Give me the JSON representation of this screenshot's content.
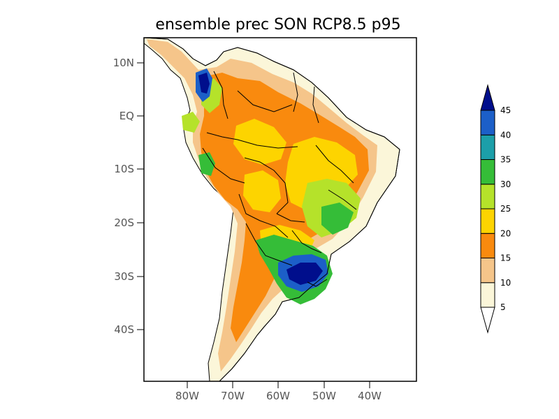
{
  "title": "ensemble prec SON RCP8.5 p95",
  "map": {
    "lon_labels": [
      "80W",
      "70W",
      "60W",
      "50W",
      "40W"
    ],
    "lat_labels": [
      "10N",
      "EQ",
      "10S",
      "20S",
      "30S",
      "40S"
    ],
    "lon_range": [
      -90,
      -30
    ],
    "lat_range": [
      -50,
      13
    ]
  },
  "colorbar": {
    "levels": [
      5,
      10,
      15,
      20,
      25,
      30,
      35,
      40,
      45
    ],
    "labels": [
      "5",
      "10",
      "15",
      "20",
      "25",
      "30",
      "35",
      "40",
      "45"
    ],
    "colors": [
      "#fbf6d9",
      "#f5c58a",
      "#f98a0e",
      "#fdd400",
      "#b5e22a",
      "#35bd38",
      "#1c9fa9",
      "#1c5fc8",
      "#000e8c"
    ],
    "under_color": "#ffffff",
    "over_color": "#000e8c"
  }
}
